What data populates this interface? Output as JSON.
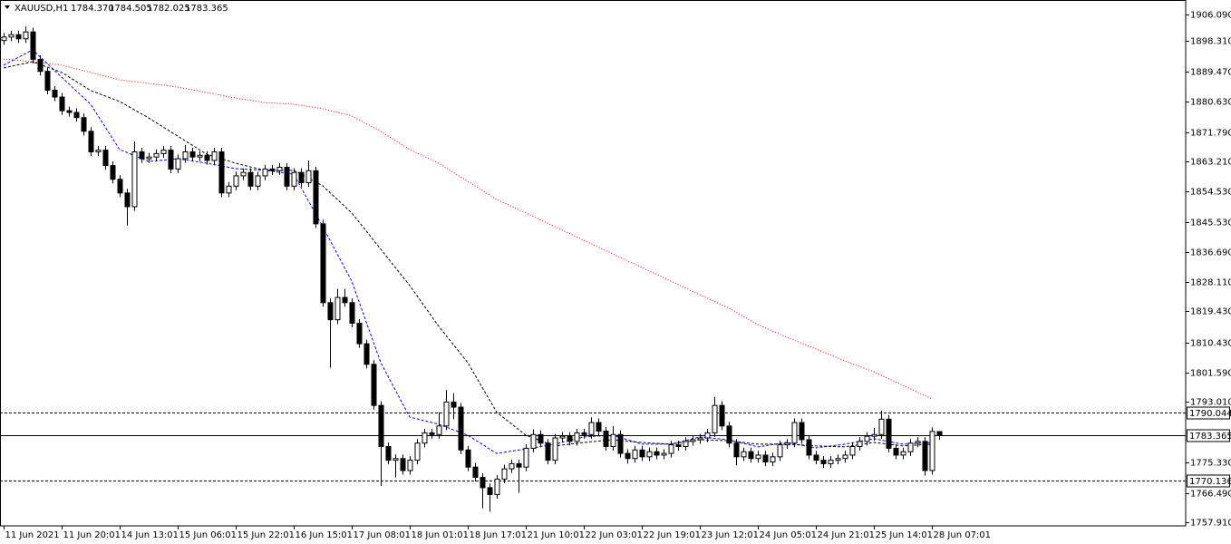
{
  "chart_data": {
    "type": "candlestick",
    "title": "XAUUSD,H1",
    "ohlc_labels": [
      "1784.370",
      "1784.505",
      "1782.025",
      "1783.365"
    ],
    "open": [
      1898.5,
      1899.5,
      1900.2,
      1899.0,
      1901.0,
      1893.0,
      1889.5,
      1884.0,
      1882.0,
      1878.0,
      1877.5,
      1876.0,
      1872.0,
      1866.0,
      1866.5,
      1862.0,
      1858.0,
      1854.0,
      1850.0,
      1866.0,
      1864.0,
      1864.5,
      1865.5,
      1866.5,
      1861.0,
      1864.0,
      1866.0,
      1864.5,
      1865.0,
      1863.5,
      1866.0,
      1854.0,
      1856.0,
      1859.0,
      1860.0,
      1856.0,
      1859.0,
      1861.0,
      1860.5,
      1861.5,
      1856.0,
      1860.0,
      1857.0,
      1860.5,
      1845.0,
      1822.0,
      1817.0,
      1823.5,
      1822.0,
      1816.0,
      1810.0,
      1804.0,
      1792.0,
      1780.0,
      1776.0,
      1776.5,
      1773.0,
      1776.0,
      1781.0,
      1784.0,
      1783.5,
      1786.0,
      1793.0,
      1791.5,
      1779.0,
      1774.0,
      1771.0,
      1768.0,
      1766.0,
      1770.5,
      1773.5,
      1775.0,
      1774.0,
      1779.5,
      1783.5,
      1781.0,
      1776.0,
      1782.5,
      1783.0,
      1781.5,
      1784.0,
      1783.5,
      1787.0,
      1784.5,
      1780.0,
      1783.5,
      1778.0,
      1776.5,
      1779.0,
      1777.0,
      1778.5,
      1777.5,
      1778.0,
      1780.5,
      1780.0,
      1781.5,
      1782.0,
      1782.5,
      1784.0,
      1792.0,
      1786.0,
      1781.0,
      1777.0,
      1778.5,
      1776.5,
      1777.5,
      1775.5,
      1777.0,
      1780.5,
      1781.0,
      1787.0,
      1782.0,
      1777.5,
      1776.0,
      1775.0,
      1776.0,
      1776.5,
      1777.5,
      1780.0,
      1781.5,
      1783.0,
      1783.5,
      1788.0,
      1779.5,
      1777.5,
      1778.5,
      1781.0,
      1781.5,
      1773.0,
      1784.37
    ],
    "high": [
      1900.7,
      1901.4,
      1901.4,
      1902.6,
      1902.2,
      1894.2,
      1890.7,
      1885.2,
      1883.2,
      1879.2,
      1878.7,
      1877.2,
      1873.2,
      1867.7,
      1867.7,
      1863.2,
      1859.2,
      1855.2,
      1869.0,
      1867.2,
      1865.7,
      1866.7,
      1867.7,
      1867.7,
      1865.2,
      1868.0,
      1867.2,
      1866.2,
      1866.2,
      1867.2,
      1867.2,
      1857.2,
      1860.2,
      1861.2,
      1861.2,
      1860.2,
      1862.2,
      1862.2,
      1862.7,
      1862.7,
      1861.2,
      1861.2,
      1863.5,
      1861.7,
      1846.2,
      1823.2,
      1826.0,
      1826.0,
      1823.2,
      1817.2,
      1811.2,
      1805.2,
      1793.2,
      1781.2,
      1777.7,
      1777.7,
      1777.2,
      1782.2,
      1785.2,
      1785.2,
      1790.0,
      1796.5,
      1795.5,
      1792.7,
      1780.2,
      1775.2,
      1772.2,
      1769.2,
      1771.7,
      1774.7,
      1776.2,
      1776.2,
      1780.7,
      1785.0,
      1784.7,
      1782.2,
      1783.7,
      1784.2,
      1784.2,
      1785.2,
      1785.2,
      1788.5,
      1788.2,
      1785.7,
      1786.0,
      1784.7,
      1779.2,
      1780.2,
      1780.2,
      1779.7,
      1779.7,
      1779.2,
      1781.7,
      1781.7,
      1782.7,
      1783.2,
      1783.7,
      1785.2,
      1794.5,
      1793.2,
      1787.2,
      1782.2,
      1779.7,
      1779.7,
      1778.7,
      1778.7,
      1778.2,
      1781.7,
      1782.2,
      1788.2,
      1788.2,
      1783.2,
      1778.7,
      1777.2,
      1777.2,
      1777.7,
      1778.7,
      1781.2,
      1782.7,
      1784.2,
      1785.5,
      1790.5,
      1789.2,
      1780.7,
      1779.7,
      1782.2,
      1782.7,
      1782.7,
      1785.6,
      1784.505
    ],
    "low": [
      1897.3,
      1898.3,
      1897.8,
      1897.8,
      1891.8,
      1888.3,
      1882.8,
      1880.8,
      1876.8,
      1876.3,
      1874.8,
      1870.8,
      1864.8,
      1864.8,
      1860.8,
      1856.8,
      1852.8,
      1844.5,
      1848.8,
      1862.8,
      1862.8,
      1863.3,
      1864.3,
      1859.8,
      1859.8,
      1862.8,
      1863.3,
      1863.3,
      1862.3,
      1862.3,
      1852.8,
      1852.8,
      1854.8,
      1857.8,
      1854.8,
      1854.8,
      1857.8,
      1859.3,
      1859.3,
      1854.8,
      1854.8,
      1855.8,
      1855.8,
      1843.8,
      1820.8,
      1803.0,
      1815.8,
      1820.8,
      1814.8,
      1808.8,
      1802.8,
      1790.8,
      1768.5,
      1774.8,
      1771.0,
      1771.8,
      1771.8,
      1774.8,
      1779.8,
      1782.3,
      1782.3,
      1784.8,
      1788.0,
      1777.8,
      1772.8,
      1769.8,
      1762.0,
      1761.0,
      1764.8,
      1769.3,
      1772.3,
      1766.5,
      1772.8,
      1778.3,
      1779.8,
      1774.8,
      1774.8,
      1781.3,
      1780.3,
      1780.3,
      1782.3,
      1782.3,
      1783.3,
      1778.8,
      1778.8,
      1776.8,
      1775.0,
      1775.3,
      1775.8,
      1775.8,
      1776.3,
      1776.3,
      1776.8,
      1778.8,
      1778.8,
      1780.3,
      1780.8,
      1781.3,
      1782.8,
      1784.8,
      1779.8,
      1774.5,
      1775.8,
      1775.3,
      1775.3,
      1774.3,
      1774.3,
      1775.8,
      1779.3,
      1779.8,
      1780.8,
      1776.3,
      1774.8,
      1773.8,
      1773.8,
      1774.8,
      1775.3,
      1776.3,
      1778.8,
      1780.3,
      1781.8,
      1782.3,
      1778.3,
      1776.3,
      1776.3,
      1777.3,
      1779.8,
      1771.5,
      1771.8,
      1782.025
    ],
    "close": [
      1899.5,
      1900.2,
      1899.0,
      1901.0,
      1893.0,
      1889.5,
      1884.0,
      1882.0,
      1878.0,
      1877.5,
      1876.0,
      1872.0,
      1866.0,
      1866.5,
      1862.0,
      1858.0,
      1854.0,
      1850.0,
      1866.0,
      1864.0,
      1864.5,
      1865.5,
      1866.5,
      1861.0,
      1864.0,
      1866.0,
      1864.5,
      1865.0,
      1863.5,
      1866.0,
      1854.0,
      1856.0,
      1859.0,
      1860.0,
      1856.0,
      1859.0,
      1861.0,
      1860.5,
      1861.5,
      1856.0,
      1860.0,
      1857.0,
      1860.5,
      1845.0,
      1822.0,
      1817.0,
      1823.5,
      1822.0,
      1816.0,
      1810.0,
      1804.0,
      1792.0,
      1780.0,
      1776.0,
      1776.5,
      1773.0,
      1776.0,
      1781.0,
      1784.0,
      1783.5,
      1786.0,
      1793.0,
      1791.5,
      1779.0,
      1774.0,
      1771.0,
      1768.0,
      1766.0,
      1770.5,
      1773.5,
      1775.0,
      1774.0,
      1779.5,
      1783.5,
      1781.0,
      1776.0,
      1782.5,
      1783.0,
      1781.5,
      1784.0,
      1783.5,
      1787.0,
      1784.5,
      1780.0,
      1783.5,
      1778.0,
      1776.5,
      1779.0,
      1777.0,
      1778.5,
      1777.5,
      1778.0,
      1780.5,
      1780.0,
      1781.5,
      1782.0,
      1782.5,
      1784.0,
      1792.0,
      1786.0,
      1781.0,
      1777.0,
      1778.5,
      1776.5,
      1777.5,
      1775.5,
      1777.0,
      1780.5,
      1781.0,
      1787.0,
      1782.0,
      1777.5,
      1776.0,
      1775.0,
      1776.0,
      1776.5,
      1777.5,
      1780.0,
      1781.5,
      1783.0,
      1783.5,
      1788.0,
      1779.5,
      1777.5,
      1778.5,
      1781.0,
      1781.5,
      1773.0,
      1784.4,
      1783.365
    ],
    "up_color": "#ffffff",
    "down_color": "#000000",
    "xlim": [
      -0.5,
      163
    ],
    "xticks": [
      {
        "value": 0,
        "label": "11 Jun 2021"
      },
      {
        "value": 8,
        "label": "11 Jun 20:01"
      },
      {
        "value": 16,
        "label": "14 Jun 13:01"
      },
      {
        "value": 24,
        "label": "15 Jun 06:01"
      },
      {
        "value": 32,
        "label": "15 Jun 22:01"
      },
      {
        "value": 40,
        "label": "16 Jun 15:01"
      },
      {
        "value": 48,
        "label": "17 Jun 08:01"
      },
      {
        "value": 56,
        "label": "18 Jun 01:01"
      },
      {
        "value": 64,
        "label": "18 Jun 17:01"
      },
      {
        "value": 72,
        "label": "21 Jun 10:01"
      },
      {
        "value": 80,
        "label": "22 Jun 03:01"
      },
      {
        "value": 88,
        "label": "22 Jun 19:01"
      },
      {
        "value": 96,
        "label": "23 Jun 12:01"
      },
      {
        "value": 104,
        "label": "24 Jun 05:01"
      },
      {
        "value": 112,
        "label": "24 Jun 21:01"
      },
      {
        "value": 120,
        "label": "25 Jun 14:01"
      },
      {
        "value": 128,
        "label": "28 Jun 07:01"
      }
    ],
    "ylim": [
      1756.85,
      1910.32
    ],
    "yticks": [
      {
        "value": 1906.09,
        "label": "1906.090"
      },
      {
        "value": 1898.31,
        "label": "1898.310"
      },
      {
        "value": 1889.47,
        "label": "1889.470"
      },
      {
        "value": 1880.63,
        "label": "1880.630"
      },
      {
        "value": 1871.79,
        "label": "1871.790"
      },
      {
        "value": 1863.21,
        "label": "1863.210"
      },
      {
        "value": 1854.53,
        "label": "1854.530"
      },
      {
        "value": 1845.53,
        "label": "1845.530"
      },
      {
        "value": 1836.69,
        "label": "1836.690"
      },
      {
        "value": 1828.11,
        "label": "1828.110"
      },
      {
        "value": 1819.43,
        "label": "1819.430"
      },
      {
        "value": 1810.43,
        "label": "1810.430"
      },
      {
        "value": 1801.59,
        "label": "1801.590"
      },
      {
        "value": 1793.01,
        "label": "1793.010"
      },
      {
        "value": 1775.33,
        "label": "1775.330"
      },
      {
        "value": 1766.49,
        "label": "1766.490"
      },
      {
        "value": 1757.91,
        "label": "1757.910"
      }
    ],
    "lines": {
      "x": [
        0,
        4,
        8,
        12,
        16,
        20,
        24,
        28,
        32,
        36,
        40,
        44,
        48,
        52,
        56,
        60,
        64,
        68,
        72,
        76,
        80,
        84,
        88,
        92,
        96,
        100,
        104,
        108,
        112,
        116,
        120,
        124,
        128
      ],
      "series": [
        {
          "color": "#0000ff",
          "dash": "dashed",
          "values": [
            1891.3,
            1895.8,
            1887.8,
            1879.9,
            1866.7,
            1863.2,
            1864.0,
            1862.7,
            1861.1,
            1860.6,
            1859.5,
            1844.2,
            1828.3,
            1804.5,
            1788.6,
            1786.5,
            1783.3,
            1778.0,
            1779.3,
            1780.7,
            1782.8,
            1783.3,
            1780.7,
            1780.7,
            1782.8,
            1782.0,
            1779.9,
            1781.2,
            1779.6,
            1780.7,
            1782.3,
            1780.7,
            1781.2
          ]
        },
        {
          "color": "#000000",
          "dash": "dashed",
          "values": [
            1890.5,
            1892.3,
            1889.2,
            1883.9,
            1880.7,
            1875.9,
            1870.6,
            1865.3,
            1862.7,
            1860.6,
            1860.6,
            1856.1,
            1848.2,
            1837.6,
            1827.0,
            1815.1,
            1804.5,
            1790.0,
            1783.3,
            1780.2,
            1781.2,
            1782.0,
            1781.2,
            1780.7,
            1782.0,
            1781.7,
            1780.7,
            1780.7,
            1780.2,
            1779.9,
            1781.2,
            1780.2,
            1780.7
          ]
        },
        {
          "color": "#ff0000",
          "dash": "dotted",
          "values": [
            1893.1,
            1892.3,
            1891.3,
            1889.2,
            1887.0,
            1886.0,
            1884.9,
            1883.3,
            1881.7,
            1880.4,
            1879.9,
            1878.6,
            1876.5,
            1872.0,
            1866.7,
            1862.7,
            1857.4,
            1852.1,
            1848.2,
            1844.2,
            1840.2,
            1836.2,
            1832.3,
            1828.3,
            1824.3,
            1820.4,
            1815.6,
            1811.9,
            1808.5,
            1805.0,
            1801.8,
            1797.9,
            1793.9
          ]
        }
      ]
    },
    "levels": [
      {
        "value": 1790.044,
        "style": "dashed"
      },
      {
        "value": 1783.365,
        "style": "solid"
      },
      {
        "value": 1770.136,
        "style": "dashed"
      }
    ],
    "grid": false
  }
}
